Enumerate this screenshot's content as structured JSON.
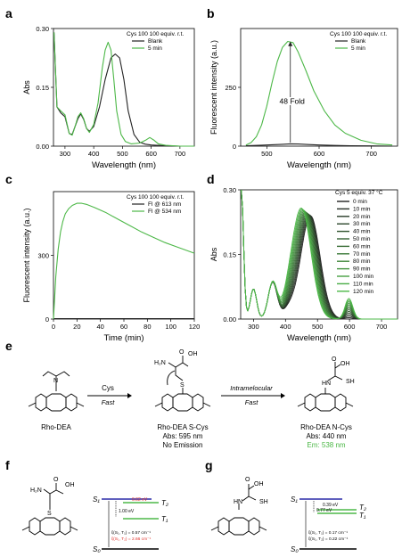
{
  "panels": {
    "a": "a",
    "b": "b",
    "c": "c",
    "d": "d",
    "e": "e",
    "f": "f",
    "g": "g"
  },
  "colors": {
    "green": "#4db848",
    "black": "#222222",
    "red": "#e0302a",
    "blue": "#2a2aa8"
  },
  "chart_data": [
    {
      "id": "a",
      "type": "line",
      "xlabel": "Wavelength (nm)",
      "ylabel": "Abs",
      "xlim": [
        260,
        750
      ],
      "ylim": [
        0,
        0.3
      ],
      "xticks": [
        300,
        400,
        500,
        600,
        700
      ],
      "yticks": [
        0.0,
        0.15,
        0.3
      ],
      "ytick_labels": [
        "0.00",
        "0.15",
        "0.30"
      ],
      "legend_title": "Cys 100 100 equiv. r.t.",
      "series": [
        {
          "name": "Blank",
          "color": "#222222",
          "x": [
            262,
            272,
            285,
            300,
            315,
            325,
            335,
            345,
            355,
            365,
            375,
            385,
            400,
            420,
            440,
            460,
            475,
            490,
            505,
            520,
            540,
            560,
            580,
            600,
            620,
            650,
            700,
            750
          ],
          "y": [
            0.29,
            0.1,
            0.085,
            0.075,
            0.032,
            0.03,
            0.05,
            0.07,
            0.082,
            0.068,
            0.045,
            0.038,
            0.05,
            0.1,
            0.17,
            0.225,
            0.235,
            0.225,
            0.17,
            0.09,
            0.03,
            0.01,
            0.005,
            0.003,
            0.002,
            0.001,
            0,
            0
          ]
        },
        {
          "name": "5 min",
          "color": "#4db848",
          "x": [
            262,
            272,
            285,
            300,
            315,
            325,
            335,
            345,
            355,
            365,
            375,
            385,
            400,
            415,
            430,
            440,
            450,
            460,
            470,
            480,
            495,
            510,
            530,
            560,
            580,
            595,
            610,
            625,
            650,
            700,
            750
          ],
          "y": [
            0.29,
            0.1,
            0.09,
            0.08,
            0.032,
            0.028,
            0.05,
            0.075,
            0.085,
            0.07,
            0.045,
            0.035,
            0.055,
            0.11,
            0.2,
            0.245,
            0.265,
            0.245,
            0.17,
            0.09,
            0.03,
            0.012,
            0.006,
            0.008,
            0.015,
            0.022,
            0.015,
            0.006,
            0.002,
            0,
            0
          ]
        }
      ]
    },
    {
      "id": "b",
      "type": "line",
      "xlabel": "Wavelength (nm)",
      "ylabel": "Fluorescent intensity (a.u.)",
      "xlim": [
        450,
        750
      ],
      "ylim": [
        0,
        500
      ],
      "xticks": [
        500,
        600,
        700
      ],
      "yticks": [
        0,
        250
      ],
      "legend_title": "Cys 100 100 equiv. r.t.",
      "annotation": "48 Fold",
      "series": [
        {
          "name": "Blank",
          "color": "#222222",
          "x": [
            460,
            490,
            510,
            530,
            545,
            560,
            580,
            600,
            630,
            660,
            700,
            740
          ],
          "y": [
            2,
            4,
            6,
            8,
            10,
            9,
            7,
            5,
            3,
            2,
            1,
            0
          ]
        },
        {
          "name": "5 min",
          "color": "#4db848",
          "x": [
            460,
            470,
            480,
            490,
            500,
            510,
            520,
            530,
            540,
            550,
            560,
            575,
            590,
            610,
            630,
            650,
            680,
            710,
            740
          ],
          "y": [
            5,
            15,
            40,
            90,
            170,
            270,
            360,
            420,
            445,
            440,
            400,
            320,
            235,
            150,
            90,
            55,
            25,
            10,
            5
          ]
        }
      ]
    },
    {
      "id": "c",
      "type": "line",
      "xlabel": "Time (min)",
      "ylabel": "Fluorescent intensity (a.u.)",
      "xlim": [
        0,
        120
      ],
      "ylim": [
        0,
        600
      ],
      "xticks": [
        0,
        20,
        40,
        60,
        80,
        100,
        120
      ],
      "yticks": [
        0,
        300
      ],
      "legend_title": "Cys 100 100 equiv. r.t.",
      "series": [
        {
          "name": "Fl @ 613 nm",
          "color": "#222222",
          "x": [
            0,
            120
          ],
          "y": [
            2,
            2
          ]
        },
        {
          "name": "Fl @ 534 nm",
          "color": "#4db848",
          "x": [
            0,
            1,
            2,
            4,
            6,
            8,
            10,
            13,
            16,
            20,
            24,
            28,
            35,
            45,
            55,
            65,
            75,
            85,
            95,
            105,
            120
          ],
          "y": [
            0,
            100,
            200,
            330,
            410,
            460,
            495,
            520,
            535,
            545,
            545,
            540,
            525,
            500,
            470,
            440,
            410,
            385,
            360,
            340,
            310
          ]
        }
      ]
    },
    {
      "id": "d",
      "type": "line",
      "xlabel": "Wavelength (nm)",
      "ylabel": "Abs",
      "xlim": [
        260,
        750
      ],
      "ylim": [
        0,
        0.3
      ],
      "xticks": [
        300,
        400,
        500,
        600,
        700
      ],
      "yticks": [
        0.0,
        0.15,
        0.3
      ],
      "ytick_labels": [
        "0.00",
        "0.15",
        "0.30"
      ],
      "legend_title": "Cys 5 equiv. 37 °C",
      "series_names": [
        "0 min",
        "10 min",
        "20 min",
        "30 min",
        "40 min",
        "50 min",
        "60 min",
        "70 min",
        "80 min",
        "90 min",
        "100 min",
        "110 min",
        "120 min"
      ]
    }
  ],
  "scheme_e": {
    "reagent": "Cys",
    "reagent_cond": "Fast",
    "step2": "Intramelocular",
    "step2_cond": "Fast",
    "c1_name": "Rho-DEA",
    "c2_name": "Rho-DEA S-Cys",
    "c2_abs": "Abs: 595 nm",
    "c2_em": "No Emission",
    "c3_name": "Rho-DEA N-Cys",
    "c3_abs": "Abs: 440 nm",
    "c3_em": "Em: 538 nm"
  },
  "energy_f": {
    "s1": "S₁",
    "s0": "S₀",
    "t1": "T₁",
    "t2": "T₂",
    "gap_t2": "0.02 eV",
    "gap_t1": "1.00 eV",
    "soc1": "ξ(S₁, T₁) = 0.57 cm⁻¹",
    "soc2": "ξ(S₁, T₂) = 2.66 cm⁻¹"
  },
  "energy_g": {
    "s1": "S₁",
    "s0": "S₀",
    "t1": "T₁",
    "t2": "T₂",
    "gap_t2": "0.39 eV",
    "gap_t1": "0.77 eV",
    "soc1": "ξ(S₁, T₁) = 0.17 cm⁻¹",
    "soc2": "ξ(S₁, T₂) = 0.22 cm⁻¹"
  }
}
